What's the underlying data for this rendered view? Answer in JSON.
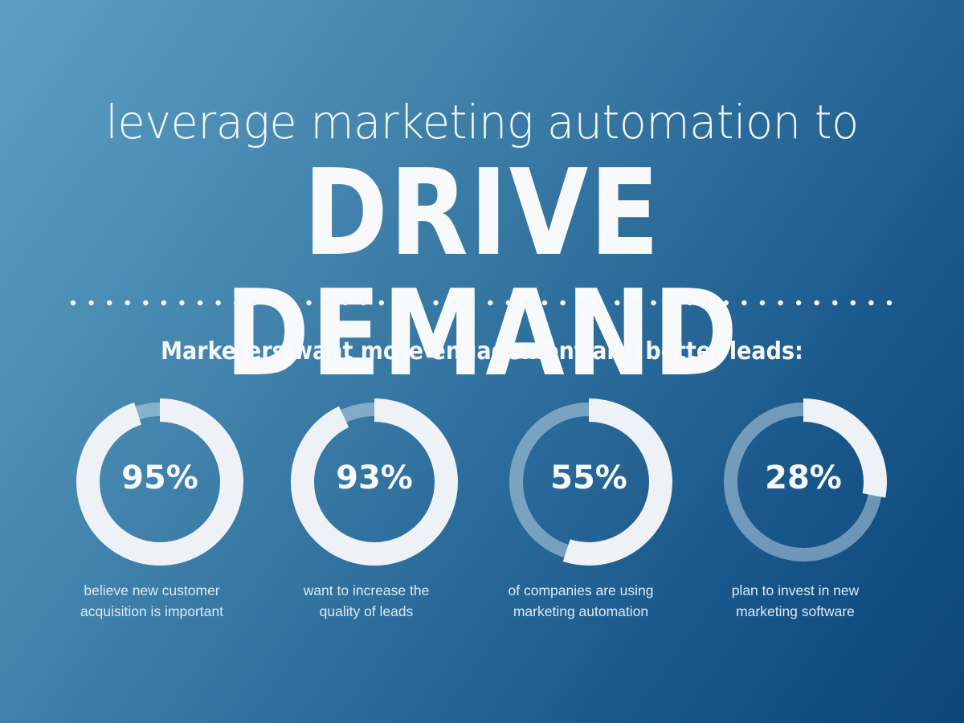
{
  "header": {
    "title_line1": "leverage marketing automation to",
    "title_line2": "DRIVE DEMAND"
  },
  "divider": {
    "style": "dotted",
    "dot_count": 46,
    "color": "#f4f7fa"
  },
  "subtitle": "Marketers want more engagement and better leads:",
  "colors": {
    "bg_top_left": "#5d9ec2",
    "bg_bottom_right": "#0c4579",
    "ring_fill": "#eef2f6",
    "ring_track": "rgba(220,232,242,0.45)",
    "text": "#f4f7fa"
  },
  "stats": [
    {
      "value": 95,
      "label": "95%",
      "caption_line1": "believe new customer",
      "caption_line2": "acquisition is important"
    },
    {
      "value": 93,
      "label": "93%",
      "caption_line1": "want to increase the",
      "caption_line2": "quality of leads"
    },
    {
      "value": 55,
      "label": "55%",
      "caption_line1": "of companies are using",
      "caption_line2": "marketing automation"
    },
    {
      "value": 28,
      "label": "28%",
      "caption_line1": "plan to invest in new",
      "caption_line2": "marketing software"
    }
  ],
  "chart_data": {
    "type": "pie",
    "subtype": "donut-progress",
    "title": "leverage marketing automation to DRIVE DEMAND",
    "subtitle": "Marketers want more engagement and better leads:",
    "categories": [
      "believe new customer acquisition is important",
      "want to increase the quality of leads",
      "of companies are using marketing automation",
      "plan to invest in new marketing software"
    ],
    "values": [
      95,
      93,
      55,
      28
    ],
    "unit": "%",
    "max": 100,
    "legend": "none",
    "grid": false
  }
}
